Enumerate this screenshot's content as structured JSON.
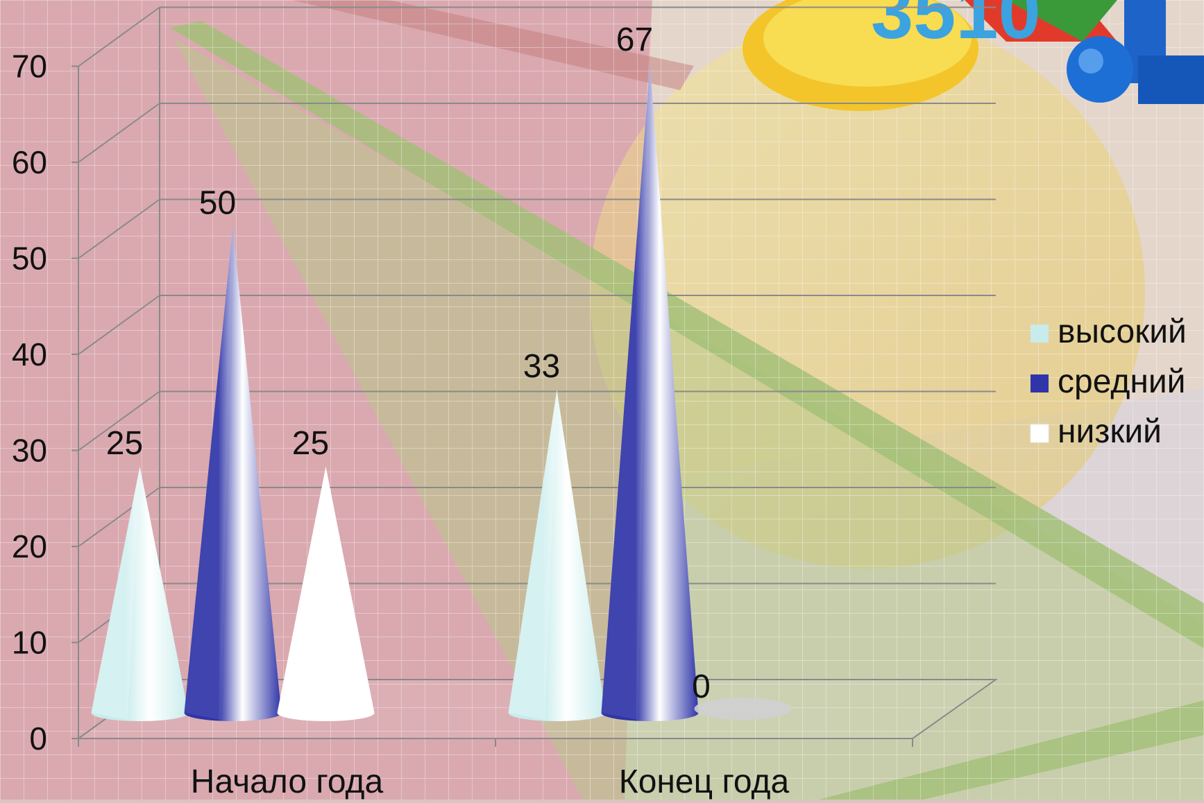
{
  "chart_data": {
    "type": "bar",
    "bar_shape": "cone",
    "style": "3d",
    "title": "",
    "xlabel": "",
    "ylabel": "",
    "categories": [
      "Начало года",
      "Конец года"
    ],
    "series": [
      {
        "name": "высокий",
        "values": [
          25,
          33
        ],
        "color": "#c8ecec"
      },
      {
        "name": "средний",
        "values": [
          50,
          67
        ],
        "color": "#2f35a8"
      },
      {
        "name": "низкий",
        "values": [
          25,
          0
        ],
        "color": "#ffffff"
      }
    ],
    "ylim": [
      0,
      70
    ],
    "yticks": [
      "0",
      "10",
      "20",
      "30",
      "40",
      "50",
      "60",
      "70"
    ],
    "grid": true,
    "legend_position": "right"
  },
  "decoration": {
    "background_color": "#d9c4c0",
    "pink_panel_color": "#d6a0a8",
    "green_band_color": "#a8c47a",
    "yellow_disc_color": "#efd86a",
    "logo_text": "3510"
  }
}
